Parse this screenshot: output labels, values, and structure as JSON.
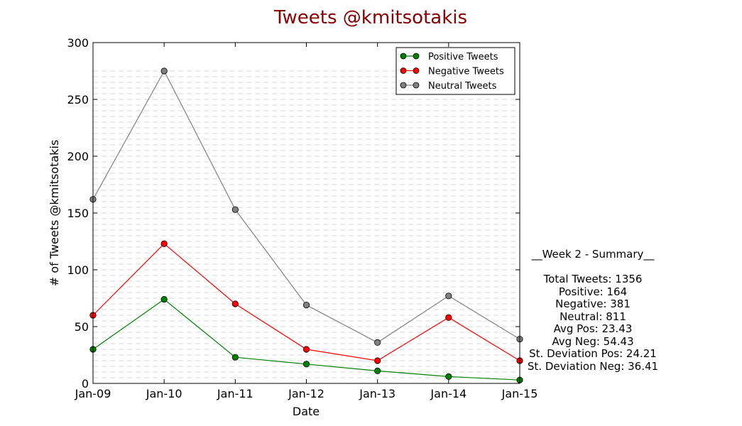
{
  "chart_data": {
    "type": "line",
    "title": "Tweets @kmitsotakis",
    "xlabel": "Date",
    "ylabel": "# of Tweets @kmitsotakis",
    "categories": [
      "Jan-09",
      "Jan-10",
      "Jan-11",
      "Jan-12",
      "Jan-13",
      "Jan-14",
      "Jan-15"
    ],
    "ylim": [
      0,
      300
    ],
    "yticks": [
      0,
      50,
      100,
      150,
      200,
      250,
      300
    ],
    "grid": "horizontal dashed",
    "legend_position": "top-right",
    "series": [
      {
        "name": "Positive Tweets",
        "color": "#008000",
        "values": [
          30,
          74,
          23,
          17,
          11,
          6,
          3
        ]
      },
      {
        "name": "Negative Tweets",
        "color": "#ff0000",
        "values": [
          60,
          123,
          70,
          30,
          20,
          58,
          20
        ]
      },
      {
        "name": "Neutral Tweets",
        "color": "#808080",
        "values": [
          162,
          275,
          153,
          69,
          36,
          77,
          39
        ]
      }
    ]
  },
  "summary": {
    "heading": "__Week 2 - Summary__",
    "lines": [
      "Total Tweets: 1356",
      "Positive: 164",
      "Negative: 381",
      "Neutral: 811",
      "Avg Pos: 23.43",
      "Avg Neg: 54.43",
      "St. Deviation Pos: 24.21",
      "St. Deviation Neg: 36.41"
    ]
  },
  "colors": {
    "title": "#8b0000",
    "marker_edge": "#000000"
  }
}
